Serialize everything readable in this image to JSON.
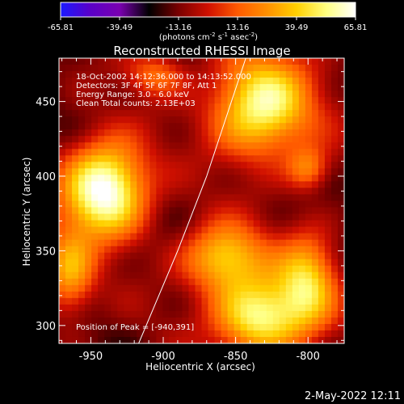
{
  "chart_data": {
    "type": "heatmap",
    "title": "Reconstructed RHESSI Image",
    "xlabel": "Heliocentric X (arcsec)",
    "ylabel": "Heliocentric Y (arcsec)",
    "xlim": [
      -972,
      -775
    ],
    "ylim": [
      288,
      479
    ],
    "x_ticks": [
      -950,
      -900,
      -850,
      -800
    ],
    "y_ticks": [
      300,
      350,
      400,
      450
    ],
    "colorbar": {
      "ticks": [
        "-65.81",
        "-39.49",
        "-13.16",
        "13.16",
        "39.49",
        "65.81"
      ],
      "range": [
        -65.81,
        65.81
      ],
      "unit_label": "(photons cm",
      "unit_label_sup1": "-2",
      "unit_label_mid": " s",
      "unit_label_sup2": "-1",
      "unit_label_end": " asec",
      "unit_label_sup3": "-2",
      "unit_label_close": ")",
      "colors": [
        "#1a1aff",
        "#5a00c8",
        "#7a00b0",
        "#000000",
        "#7a0000",
        "#d01000",
        "#ff5a00",
        "#ff9000",
        "#ffd000",
        "#ffff80",
        "#ffffff"
      ]
    },
    "info_lines": [
      "18-Oct-2002 14:12:36.000 to 14:13:52.000",
      "Detectors: 3F 4F 5F 6F 7F 8F, Att 1",
      "Energy Range: 3.0 - 6.0 keV",
      "Clean    Total counts: 2.13E+03"
    ],
    "peak_label": "Position of Peak = [-940,391]",
    "limb_line": [
      [
        -917,
        288
      ],
      [
        -890,
        350
      ],
      [
        -870,
        400
      ],
      [
        -843,
        479
      ]
    ],
    "sources": [
      {
        "x": -940,
        "y": 391,
        "amp": 72,
        "sx": 20,
        "sy": 22
      },
      {
        "x": -832,
        "y": 447,
        "amp": 58,
        "sx": 24,
        "sy": 24
      },
      {
        "x": -833,
        "y": 306,
        "amp": 56,
        "sx": 22,
        "sy": 18
      },
      {
        "x": -858,
        "y": 345,
        "amp": 42,
        "sx": 20,
        "sy": 16
      },
      {
        "x": -800,
        "y": 330,
        "amp": 36,
        "sx": 14,
        "sy": 22
      },
      {
        "x": -965,
        "y": 335,
        "amp": 30,
        "sx": 12,
        "sy": 20
      },
      {
        "x": -905,
        "y": 468,
        "amp": 16,
        "sx": 14,
        "sy": 10
      },
      {
        "x": -800,
        "y": 405,
        "amp": 20,
        "sx": 10,
        "sy": 10
      }
    ],
    "background_level": -14
  },
  "footer": {
    "date": "2-May-2022 12:11"
  }
}
